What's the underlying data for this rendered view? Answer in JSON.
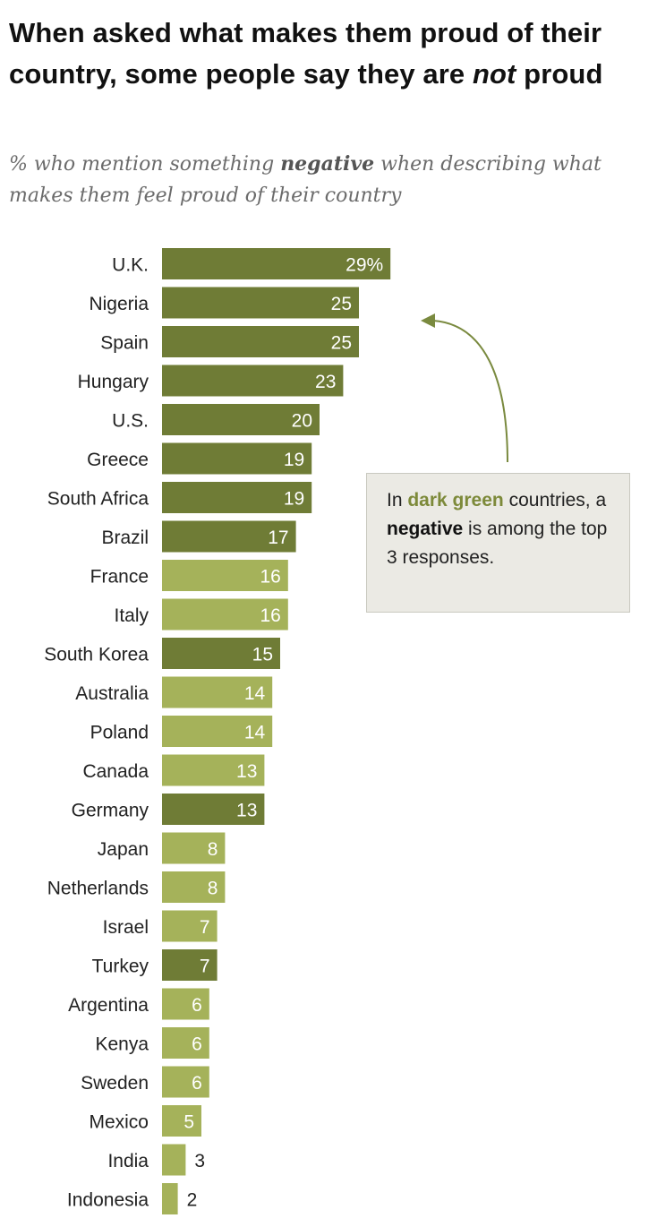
{
  "title": {
    "part1": "When asked what makes them proud of their country, some people say they are ",
    "emph": "not",
    "part2": " proud"
  },
  "subtitle": {
    "part1": "% who mention something ",
    "emph": "negative",
    "part2": " when describing what makes them feel proud of their country"
  },
  "callout": {
    "t1": "In ",
    "t2": "dark green",
    "t3": " countries, a ",
    "t4": "negative",
    "t5": " is among the top 3 responses."
  },
  "colors": {
    "dark_green": "#6f7c36",
    "light_green": "#a5b25a",
    "arrow": "#7a8a3f",
    "dark_label_text": "#7d8a3a"
  },
  "chart_data": {
    "type": "bar",
    "orientation": "horizontal",
    "unit": "%",
    "categories": [
      "U.K.",
      "Nigeria",
      "Spain",
      "Hungary",
      "U.S.",
      "Greece",
      "South Africa",
      "Brazil",
      "France",
      "Italy",
      "South Korea",
      "Australia",
      "Poland",
      "Canada",
      "Germany",
      "Japan",
      "Netherlands",
      "Israel",
      "Turkey",
      "Argentina",
      "Kenya",
      "Sweden",
      "Mexico",
      "India",
      "Indonesia"
    ],
    "values": [
      29,
      25,
      25,
      23,
      20,
      19,
      19,
      17,
      16,
      16,
      15,
      14,
      14,
      13,
      13,
      8,
      8,
      7,
      7,
      6,
      6,
      6,
      5,
      3,
      2
    ],
    "value_labels": [
      "29%",
      "25",
      "25",
      "23",
      "20",
      "19",
      "19",
      "17",
      "16",
      "16",
      "15",
      "14",
      "14",
      "13",
      "13",
      "8",
      "8",
      "7",
      "7",
      "6",
      "6",
      "6",
      "5",
      "3",
      "2"
    ],
    "negative_in_top3": [
      true,
      true,
      true,
      true,
      true,
      true,
      true,
      true,
      false,
      false,
      true,
      false,
      false,
      false,
      true,
      false,
      false,
      false,
      true,
      false,
      false,
      false,
      false,
      false,
      false
    ],
    "xlim": [
      0,
      100
    ],
    "title": "When asked what makes them proud of their country, some people say they are not proud",
    "xlabel": "",
    "ylabel": ""
  }
}
